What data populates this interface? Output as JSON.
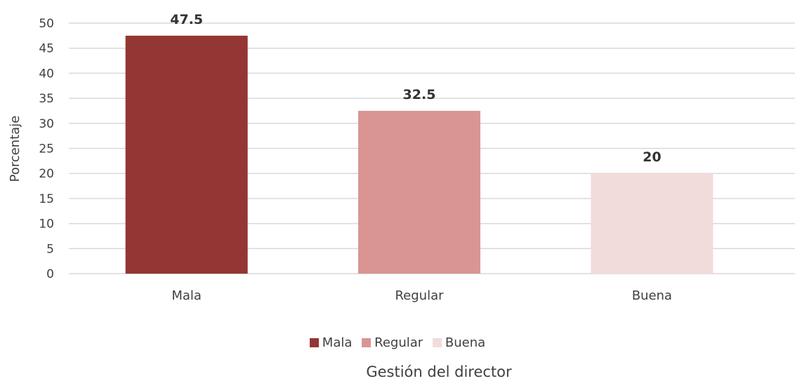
{
  "chart_data": {
    "type": "bar",
    "categories": [
      "Mala",
      "Regular",
      "Buena"
    ],
    "values": [
      47.5,
      32.5,
      20
    ],
    "data_labels": [
      "47.5",
      "32.5",
      "20"
    ],
    "colors": [
      "#943634",
      "#D99594",
      "#F2DCDB"
    ],
    "grid_color": "#D9D9D9",
    "ylabel": "Porcentaje",
    "xlabel": "Gestión del director",
    "ylim": [
      0,
      50
    ],
    "yticks": [
      "0",
      "5",
      "10",
      "15",
      "20",
      "25",
      "30",
      "35",
      "40",
      "45",
      "50"
    ],
    "grid": true,
    "legend": {
      "placement": "bottom",
      "items": [
        "Mala",
        "Regular",
        "Buena"
      ]
    }
  }
}
